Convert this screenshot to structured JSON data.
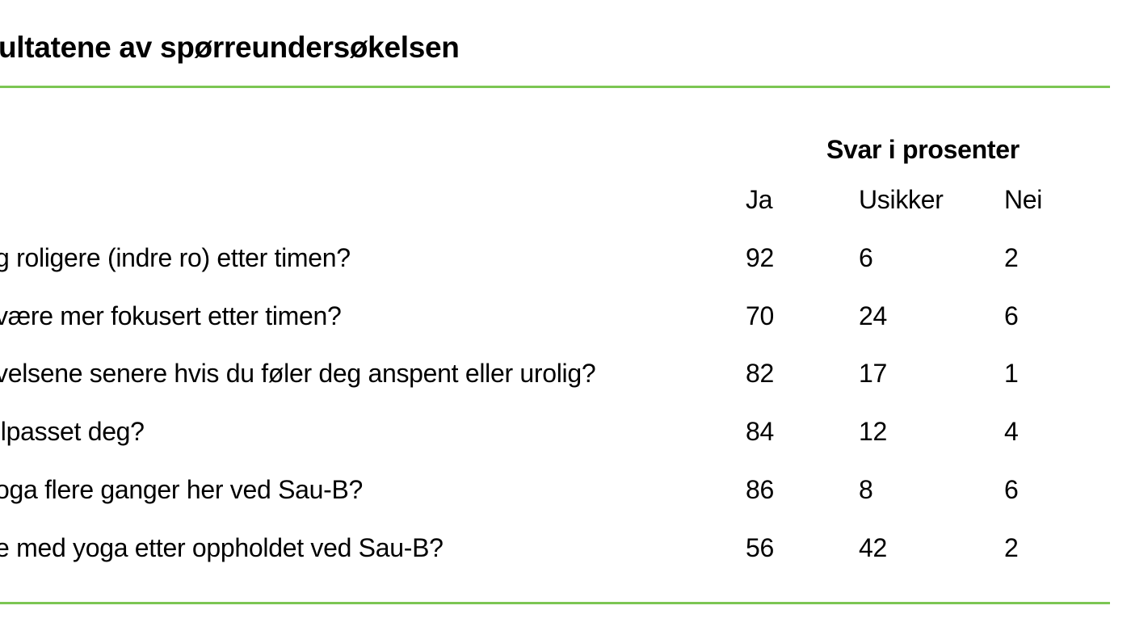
{
  "title": "ultatene av spørreundersøkelsen",
  "colors": {
    "rule": "#7cc653",
    "text": "#000000",
    "background": "#ffffff"
  },
  "table": {
    "group_header": "Svar i prosenter",
    "columns": [
      "Ja",
      "Usikker",
      "Nei"
    ],
    "rows": [
      {
        "question": "g roligere (indre ro) etter timen?",
        "ja": "92",
        "usikker": "6",
        "nei": "2"
      },
      {
        "question": " være mer fokusert etter timen?",
        "ja": "70",
        "usikker": "24",
        "nei": "6"
      },
      {
        "question": "velsene senere hvis du føler deg anspent eller urolig?",
        "ja": "82",
        "usikker": "17",
        "nei": "1"
      },
      {
        "question": "ilpasset deg?",
        "ja": "84",
        "usikker": "12",
        "nei": "4"
      },
      {
        "question": "oga flere ganger her ved Sau-B?",
        "ja": "86",
        "usikker": "8",
        "nei": "6"
      },
      {
        "question": "e med yoga etter oppholdet ved Sau-B?",
        "ja": "56",
        "usikker": "42",
        "nei": "2"
      }
    ]
  }
}
